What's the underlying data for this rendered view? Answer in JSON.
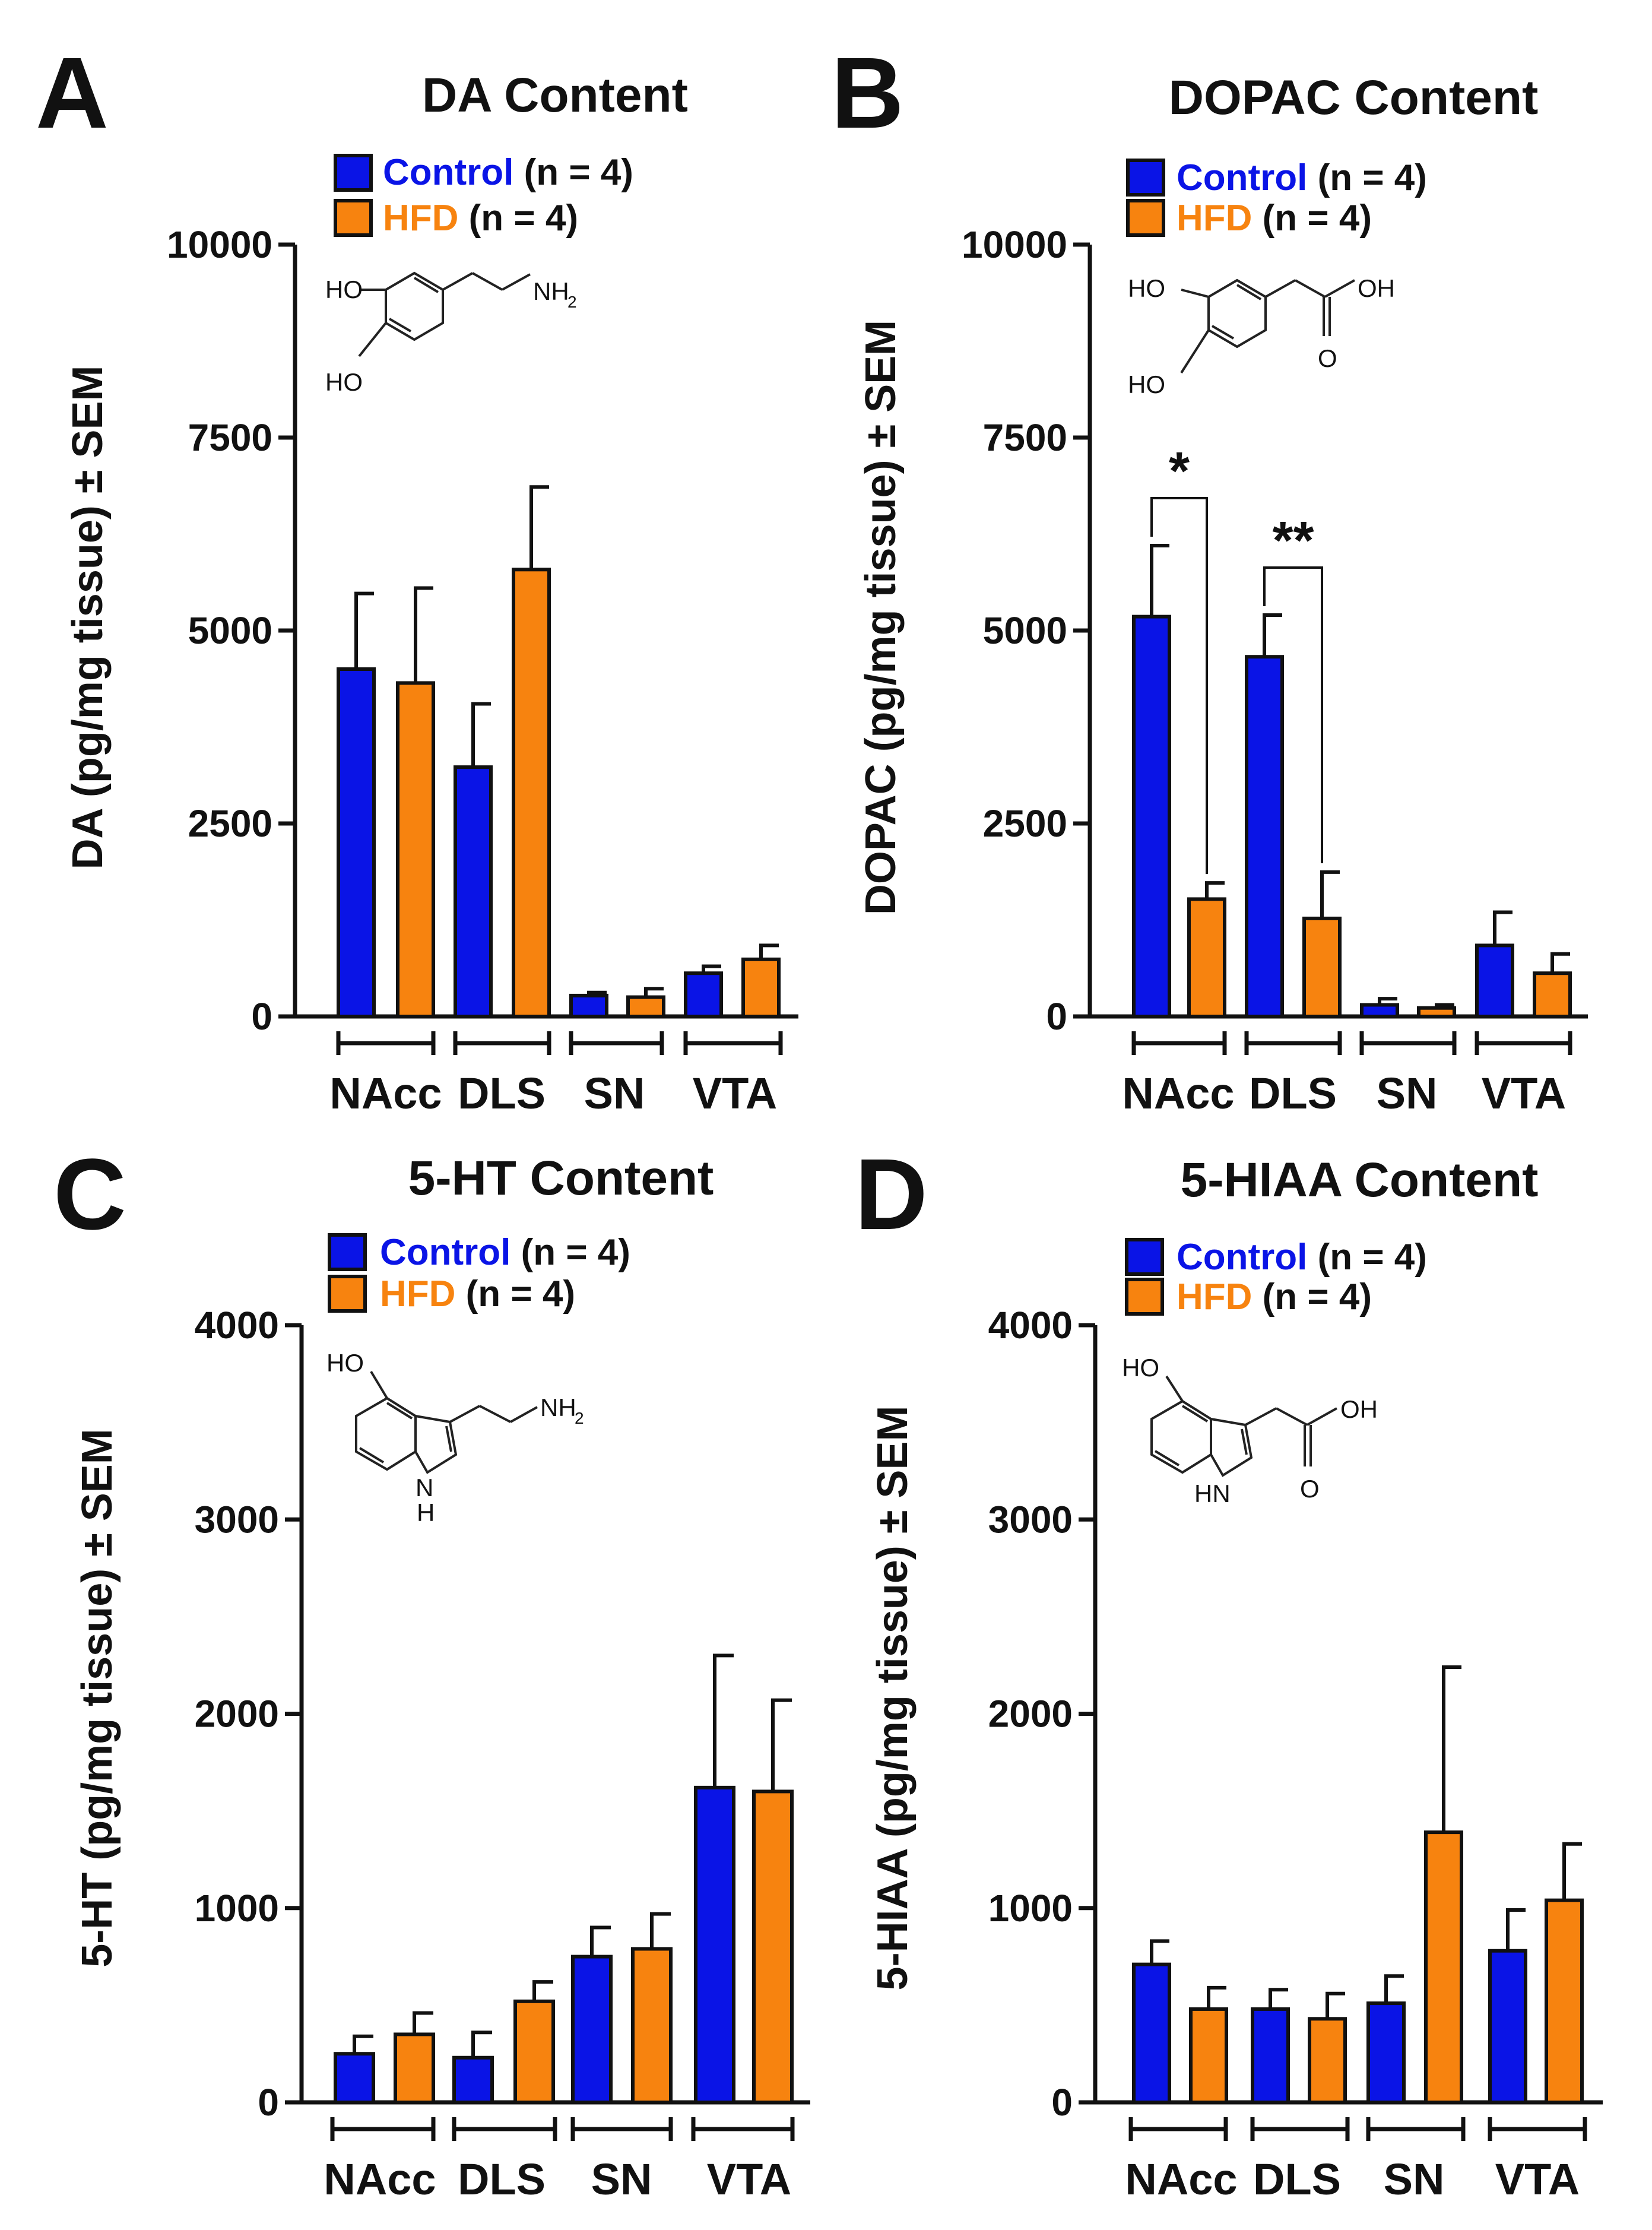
{
  "colors": {
    "control": "#0a14e6",
    "hfd": "#f7830f",
    "text": "#111111"
  },
  "chart_data": [
    {
      "panel": "A",
      "type": "bar",
      "title": "DA Content",
      "ylabel": "DA (pg/mg tissue) ± SEM",
      "ylim": [
        0,
        10000
      ],
      "yticks": [
        "0",
        "2500",
        "5000",
        "7500",
        "10000"
      ],
      "categories": [
        "NAcc",
        "DLS",
        "SN",
        "VTA"
      ],
      "legend": [
        {
          "name": "Control",
          "n": "(n = 4)"
        },
        {
          "name": "HFD",
          "n": "(n = 4)"
        }
      ],
      "series": [
        {
          "name": "Control",
          "values": [
            4500,
            3230,
            270,
            560
          ],
          "sem": [
            980,
            820,
            40,
            90
          ]
        },
        {
          "name": "HFD",
          "values": [
            4320,
            5790,
            250,
            740
          ],
          "sem": [
            1230,
            1070,
            110,
            180
          ]
        }
      ],
      "significance": [],
      "molecule": {
        "labels": [
          "HO",
          "HO",
          "NH",
          "2"
        ]
      }
    },
    {
      "panel": "B",
      "type": "bar",
      "title": "DOPAC Content",
      "ylabel": "DOPAC (pg/mg tissue) ± SEM",
      "ylim": [
        0,
        10000
      ],
      "yticks": [
        "0",
        "2500",
        "5000",
        "7500",
        "10000"
      ],
      "categories": [
        "NAcc",
        "DLS",
        "SN",
        "VTA"
      ],
      "legend": [
        {
          "name": "Control",
          "n": "(n = 4)"
        },
        {
          "name": "HFD",
          "n": "(n = 4)"
        }
      ],
      "series": [
        {
          "name": "Control",
          "values": [
            5180,
            4660,
            150,
            920
          ],
          "sem": [
            920,
            540,
            80,
            430
          ]
        },
        {
          "name": "HFD",
          "values": [
            1520,
            1270,
            110,
            560
          ],
          "sem": [
            210,
            600,
            40,
            250
          ]
        }
      ],
      "significance": [
        {
          "category": "NAcc",
          "label": "*"
        },
        {
          "category": "DLS",
          "label": "**"
        }
      ],
      "molecule": {
        "labels": [
          "HO",
          "HO",
          "OH",
          "O"
        ]
      }
    },
    {
      "panel": "C",
      "type": "bar",
      "title": "5-HT Content",
      "ylabel": "5-HT (pg/mg tissue) ± SEM",
      "ylim": [
        0,
        4000
      ],
      "yticks": [
        "0",
        "1000",
        "2000",
        "3000",
        "4000"
      ],
      "categories": [
        "NAcc",
        "DLS",
        "SN",
        "VTA"
      ],
      "legend": [
        {
          "name": "Control",
          "n": "(n = 4)"
        },
        {
          "name": "HFD",
          "n": "(n = 4)"
        }
      ],
      "series": [
        {
          "name": "Control",
          "values": [
            250,
            230,
            750,
            1620
          ],
          "sem": [
            90,
            130,
            150,
            680
          ]
        },
        {
          "name": "HFD",
          "values": [
            350,
            520,
            790,
            1600
          ],
          "sem": [
            110,
            100,
            180,
            470
          ]
        }
      ],
      "significance": [],
      "molecule": {
        "labels": [
          "HO",
          "NH",
          "2",
          "N",
          "H"
        ]
      }
    },
    {
      "panel": "D",
      "type": "bar",
      "title": "5-HIAA Content",
      "ylabel": "5-HIAA (pg/mg tissue) ± SEM",
      "ylim": [
        0,
        4000
      ],
      "yticks": [
        "0",
        "1000",
        "2000",
        "3000",
        "4000"
      ],
      "categories": [
        "NAcc",
        "DLS",
        "SN",
        "VTA"
      ],
      "legend": [
        {
          "name": "Control",
          "n": "(n = 4)"
        },
        {
          "name": "HFD",
          "n": "(n = 4)"
        }
      ],
      "series": [
        {
          "name": "Control",
          "values": [
            710,
            480,
            510,
            780
          ],
          "sem": [
            120,
            100,
            140,
            210
          ]
        },
        {
          "name": "HFD",
          "values": [
            480,
            430,
            1390,
            1040
          ],
          "sem": [
            110,
            130,
            850,
            290
          ]
        }
      ],
      "significance": [],
      "molecule": {
        "labels": [
          "HO",
          "OH",
          "O",
          "HN"
        ]
      }
    }
  ]
}
